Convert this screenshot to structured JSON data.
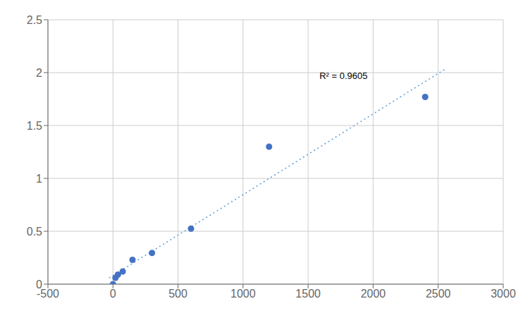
{
  "chart_data": {
    "type": "scatter",
    "series": [
      {
        "type": "line",
        "line_style": "dotted",
        "color": "#5B9BD5",
        "x": [
          -30,
          2550
        ],
        "values": [
          0.0588384,
          2.0303293
        ]
      },
      {
        "type": "scatter",
        "color": "#4472C4",
        "x": [
          0,
          19,
          38,
          75,
          150,
          300,
          600,
          1200,
          2400
        ],
        "values": [
          0.0,
          0.06,
          0.09,
          0.12,
          0.23,
          0.295,
          0.525,
          1.3,
          1.77
        ]
      }
    ],
    "annotations": [
      {
        "text": "R² = 0.9605",
        "x": 1560,
        "y": 1.97
      }
    ],
    "xlim": [
      -500,
      3000
    ],
    "xticks": [
      -500,
      0,
      500,
      1000,
      1500,
      2000,
      2500,
      3000
    ],
    "ylim": [
      0,
      2.5
    ],
    "yticks": [
      0,
      0.5,
      1,
      1.5,
      2,
      2.5
    ],
    "grid": true
  }
}
